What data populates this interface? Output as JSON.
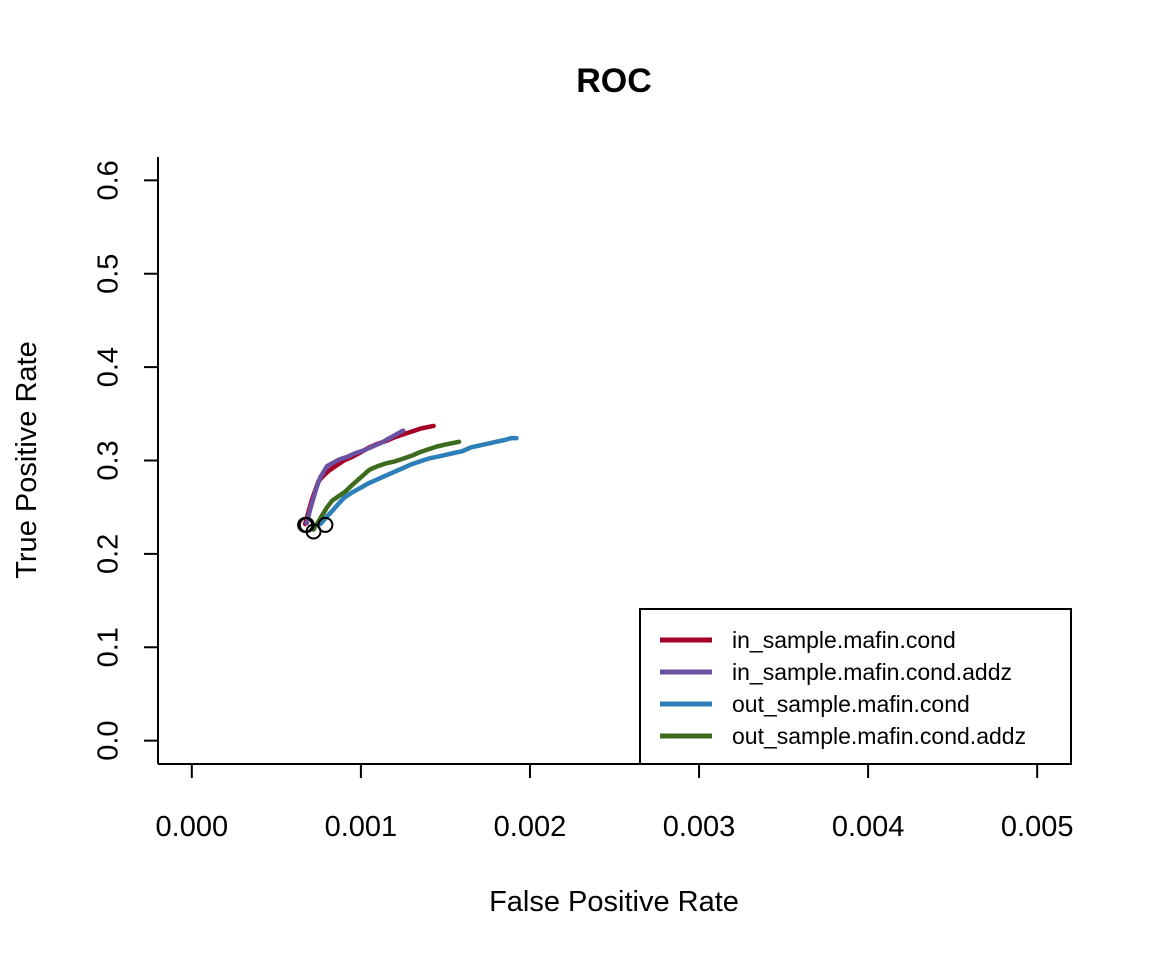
{
  "chart_data": {
    "type": "line",
    "title": "ROC",
    "xlabel": "False Positive Rate",
    "ylabel": "True Positive Rate",
    "xlim": [
      -0.0002,
      0.0052
    ],
    "ylim": [
      -0.025,
      0.625
    ],
    "x_ticks": [
      0.0,
      0.001,
      0.002,
      0.003,
      0.004,
      0.005
    ],
    "x_tick_labels": [
      "0.000",
      "0.001",
      "0.002",
      "0.003",
      "0.004",
      "0.005"
    ],
    "y_ticks": [
      0.0,
      0.1,
      0.2,
      0.3,
      0.4,
      0.5,
      0.6
    ],
    "y_tick_labels": [
      "0.0",
      "0.1",
      "0.2",
      "0.3",
      "0.4",
      "0.5",
      "0.6"
    ],
    "grid": false,
    "legend_position": "bottom-right",
    "series": [
      {
        "name": "in_sample.mafin.cond",
        "color": "#a50026",
        "x": [
          0.00067,
          0.00069,
          0.00071,
          0.00073,
          0.00075,
          0.00078,
          0.00081,
          0.00085,
          0.0009,
          0.00095,
          0.001,
          0.00105,
          0.0011,
          0.00115,
          0.0012,
          0.00125,
          0.0013,
          0.00135,
          0.0014,
          0.00143
        ],
        "y": [
          0.232,
          0.245,
          0.258,
          0.268,
          0.278,
          0.284,
          0.289,
          0.294,
          0.3,
          0.304,
          0.309,
          0.314,
          0.318,
          0.321,
          0.325,
          0.328,
          0.331,
          0.334,
          0.336,
          0.337
        ],
        "start_marker": [
          0.00067,
          0.231
        ]
      },
      {
        "name": "in_sample.mafin.cond.addz",
        "color": "#6a51a3",
        "x": [
          0.00068,
          0.0007,
          0.00072,
          0.00074,
          0.00076,
          0.00078,
          0.0008,
          0.00083,
          0.00087,
          0.00092,
          0.00097,
          0.00102,
          0.00107,
          0.00112,
          0.00117,
          0.00122,
          0.00125
        ],
        "y": [
          0.233,
          0.248,
          0.26,
          0.272,
          0.282,
          0.288,
          0.294,
          0.297,
          0.301,
          0.304,
          0.308,
          0.311,
          0.315,
          0.319,
          0.324,
          0.329,
          0.332
        ],
        "start_marker": [
          0.00068,
          0.231
        ]
      },
      {
        "name": "out_sample.mafin.cond",
        "color": "#2c7fb8",
        "x": [
          0.00076,
          0.00079,
          0.00082,
          0.00086,
          0.0009,
          0.00095,
          0.001,
          0.00105,
          0.0011,
          0.00115,
          0.0012,
          0.00125,
          0.0013,
          0.00135,
          0.0014,
          0.00145,
          0.0015,
          0.00155,
          0.0016,
          0.00165,
          0.0017,
          0.00175,
          0.0018,
          0.00185,
          0.00189,
          0.00192
        ],
        "y": [
          0.232,
          0.238,
          0.244,
          0.252,
          0.26,
          0.266,
          0.271,
          0.276,
          0.28,
          0.284,
          0.288,
          0.292,
          0.296,
          0.299,
          0.302,
          0.304,
          0.306,
          0.308,
          0.31,
          0.314,
          0.316,
          0.318,
          0.32,
          0.322,
          0.324,
          0.324
        ],
        "start_marker": [
          0.00079,
          0.231
        ]
      },
      {
        "name": "out_sample.mafin.cond.addz",
        "color": "#3d6b1e",
        "x": [
          0.00072,
          0.00074,
          0.00076,
          0.00078,
          0.0008,
          0.00083,
          0.00087,
          0.00091,
          0.00095,
          0.001,
          0.00105,
          0.0011,
          0.00115,
          0.0012,
          0.00125,
          0.0013,
          0.00135,
          0.0014,
          0.00145,
          0.0015,
          0.00155,
          0.00158
        ],
        "y": [
          0.226,
          0.232,
          0.238,
          0.244,
          0.25,
          0.257,
          0.262,
          0.267,
          0.274,
          0.282,
          0.29,
          0.294,
          0.297,
          0.299,
          0.302,
          0.305,
          0.309,
          0.312,
          0.315,
          0.317,
          0.319,
          0.32
        ],
        "start_marker": [
          0.00072,
          0.224
        ]
      }
    ]
  }
}
